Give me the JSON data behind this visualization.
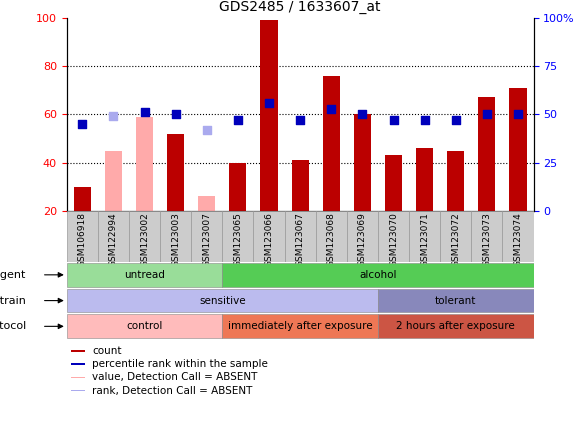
{
  "title": "GDS2485 / 1633607_at",
  "samples": [
    "GSM106918",
    "GSM122994",
    "GSM123002",
    "GSM123003",
    "GSM123007",
    "GSM123065",
    "GSM123066",
    "GSM123067",
    "GSM123068",
    "GSM123069",
    "GSM123070",
    "GSM123071",
    "GSM123072",
    "GSM123073",
    "GSM123074"
  ],
  "count_values": [
    30,
    null,
    null,
    52,
    null,
    40,
    99,
    41,
    76,
    60,
    43,
    46,
    45,
    67,
    71
  ],
  "count_absent": [
    null,
    45,
    59,
    null,
    26,
    null,
    null,
    null,
    null,
    null,
    null,
    null,
    null,
    null,
    null
  ],
  "percentile_values": [
    45,
    null,
    51,
    50,
    null,
    47,
    56,
    47,
    53,
    50,
    47,
    47,
    47,
    50,
    50
  ],
  "percentile_absent": [
    null,
    49,
    null,
    null,
    42,
    null,
    null,
    null,
    null,
    null,
    null,
    null,
    null,
    null,
    null
  ],
  "ylim_left": [
    20,
    100
  ],
  "ylim_right": [
    0,
    100
  ],
  "yticks_left": [
    20,
    40,
    60,
    80,
    100
  ],
  "yticks_right": [
    0,
    25,
    50,
    75,
    100
  ],
  "yticklabels_right": [
    "0",
    "25",
    "50",
    "75",
    "100%"
  ],
  "bar_color": "#bb0000",
  "bar_absent_color": "#ffaaaa",
  "dot_color": "#0000bb",
  "dot_absent_color": "#aaaaee",
  "bar_width": 0.55,
  "dot_size": 28,
  "agent_groups": [
    {
      "label": "untread",
      "start": 0,
      "end": 4,
      "color": "#99dd99"
    },
    {
      "label": "alcohol",
      "start": 5,
      "end": 14,
      "color": "#55cc55"
    }
  ],
  "strain_groups": [
    {
      "label": "sensitive",
      "start": 0,
      "end": 9,
      "color": "#bbbbee"
    },
    {
      "label": "tolerant",
      "start": 10,
      "end": 14,
      "color": "#8888bb"
    }
  ],
  "protocol_groups": [
    {
      "label": "control",
      "start": 0,
      "end": 4,
      "color": "#ffbbbb"
    },
    {
      "label": "immediately after exposure",
      "start": 5,
      "end": 9,
      "color": "#ee7755"
    },
    {
      "label": "2 hours after exposure",
      "start": 10,
      "end": 14,
      "color": "#cc5544"
    }
  ],
  "legend_items": [
    {
      "label": "count",
      "color": "#bb0000"
    },
    {
      "label": "percentile rank within the sample",
      "color": "#0000bb"
    },
    {
      "label": "value, Detection Call = ABSENT",
      "color": "#ffaaaa"
    },
    {
      "label": "rank, Detection Call = ABSENT",
      "color": "#aaaaee"
    }
  ],
  "row_labels": [
    "agent",
    "strain",
    "protocol"
  ]
}
